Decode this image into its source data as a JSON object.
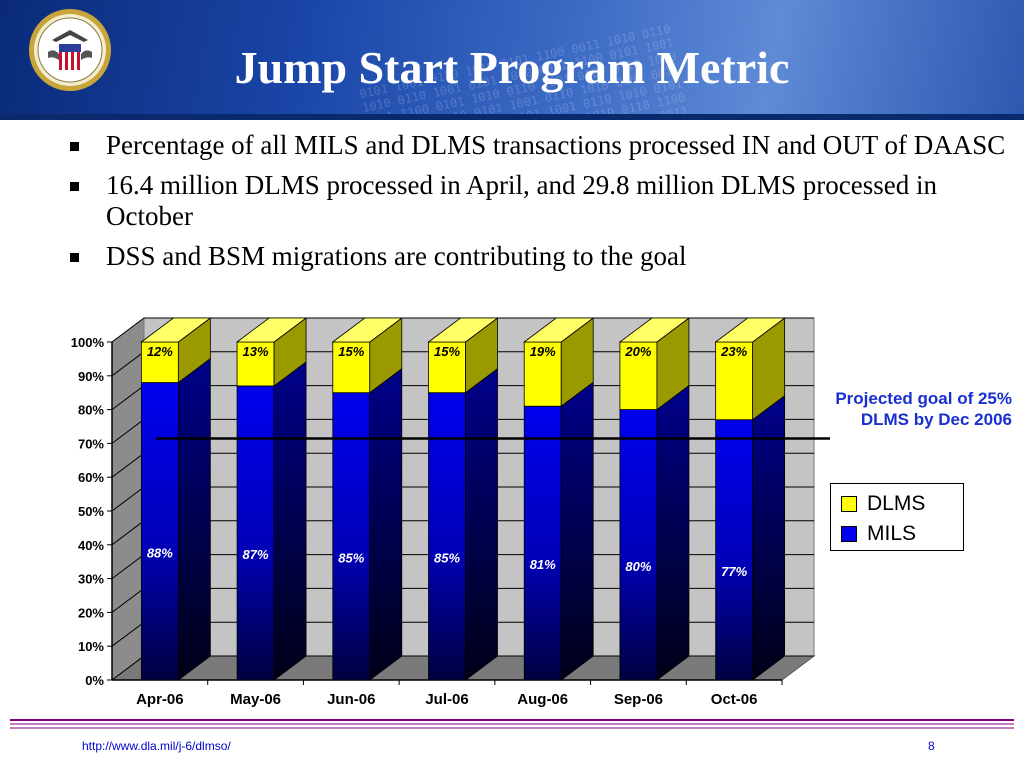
{
  "slide": {
    "title": "Jump Start Program Metric",
    "bullets": [
      "Percentage of all MILS and DLMS transactions processed IN and OUT of DAASC",
      "16.4 million DLMS processed in April, and 29.8 million DLMS processed in October",
      "DSS and BSM migrations are contributing to the goal"
    ],
    "footer_url": "http://www.dla.mil/j-6/dlmso/",
    "page_number": "8"
  },
  "colors": {
    "header_dark": "#0a2a78",
    "dlms": "#ffff00",
    "mils": "#0000ee",
    "goal_text": "#1a2fcf",
    "footer_line": "#800080"
  },
  "icons": {
    "logo": "dla-seal-icon"
  },
  "chart_data": {
    "type": "bar",
    "stacked": true,
    "three_d": true,
    "categories": [
      "Apr-06",
      "May-06",
      "Jun-06",
      "Jul-06",
      "Aug-06",
      "Sep-06",
      "Oct-06"
    ],
    "series": [
      {
        "name": "MILS",
        "values": [
          88,
          87,
          85,
          85,
          81,
          80,
          77
        ],
        "labels": [
          "88%",
          "87%",
          "85%",
          "85%",
          "81%",
          "80%",
          "77%"
        ]
      },
      {
        "name": "DLMS",
        "values": [
          12,
          13,
          15,
          15,
          19,
          20,
          23
        ],
        "labels": [
          "12%",
          "13%",
          "15%",
          "15%",
          "19%",
          "20%",
          "23%"
        ]
      }
    ],
    "y_ticks": [
      "0%",
      "10%",
      "20%",
      "30%",
      "40%",
      "50%",
      "60%",
      "70%",
      "80%",
      "90%",
      "100%"
    ],
    "ylim": [
      0,
      100
    ],
    "grid": true,
    "legend": {
      "position": "right",
      "entries": [
        "DLMS",
        "MILS"
      ]
    },
    "goal_line": {
      "value": 25,
      "label_lines": [
        "Projected goal of 25%",
        "DLMS by Dec 2006"
      ]
    }
  }
}
